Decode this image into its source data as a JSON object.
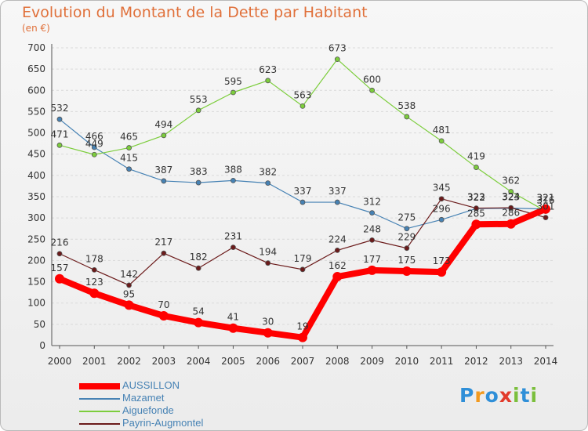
{
  "header": {
    "title": "Evolution du Montant de la Dette par Habitant",
    "unit": "(en €)"
  },
  "colors": {
    "title": "#e0703a",
    "grid": "#d9d9d9",
    "axis_text": "#333333",
    "legend_text": "#4682b4"
  },
  "logo": {
    "letters": [
      "P",
      "r",
      "o",
      "x",
      "i",
      "t",
      "i"
    ],
    "colors": [
      "#2f8fd8",
      "#f29a1f",
      "#2f8fd8",
      "#e23b2b",
      "#7bbf3c",
      "#2f8fd8",
      "#7bbf3c"
    ]
  },
  "chart_data": {
    "type": "line",
    "title": "Evolution du Montant de la Dette par Habitant",
    "ylabel": "(en €)",
    "xlabel": "",
    "ylim": [
      0,
      700
    ],
    "y_ticks": [
      0,
      50,
      100,
      150,
      200,
      250,
      300,
      350,
      400,
      450,
      500,
      550,
      600,
      650,
      700
    ],
    "grid": "horizontal dashed",
    "legend_position": "bottom-left",
    "categories": [
      "2000",
      "2001",
      "2002",
      "2003",
      "2004",
      "2005",
      "2006",
      "2007",
      "2008",
      "2009",
      "2010",
      "2011",
      "2012",
      "2013",
      "2014"
    ],
    "series": [
      {
        "name": "AUSSILLON",
        "color": "#ff0000",
        "values": [
          157,
          123,
          95,
          70,
          54,
          41,
          30,
          19,
          162,
          177,
          175,
          173,
          285,
          286,
          321
        ],
        "labels": [
          "157",
          "123",
          "95",
          "70",
          "54",
          "41",
          "30",
          "19",
          "162",
          "177",
          "175",
          "173",
          "285",
          "286",
          "321"
        ]
      },
      {
        "name": "Mazamet",
        "color": "#4682b4",
        "values": [
          532,
          466,
          415,
          387,
          383,
          388,
          382,
          337,
          337,
          312,
          275,
          296,
          322,
          323,
          321
        ],
        "labels": [
          "532",
          "466",
          "415",
          "387",
          "383",
          "388",
          "382",
          "337",
          "337",
          "312",
          "275",
          "296",
          "322",
          "323",
          "321"
        ]
      },
      {
        "name": "Aiguefonde",
        "color": "#7ccd3c",
        "values": [
          471,
          449,
          465,
          494,
          553,
          595,
          623,
          563,
          673,
          600,
          538,
          481,
          419,
          362,
          316
        ],
        "labels": [
          "471",
          "449",
          "465",
          "494",
          "553",
          "595",
          "623",
          "563",
          "673",
          "600",
          "538",
          "481",
          "419",
          "362",
          "316"
        ]
      },
      {
        "name": "Payrin-Augmontel",
        "color": "#6b1a1a",
        "values": [
          216,
          178,
          142,
          217,
          182,
          231,
          194,
          179,
          224,
          248,
          229,
          345,
          323,
          324,
          301
        ],
        "labels": [
          "216",
          "178",
          "142",
          "217",
          "182",
          "231",
          "194",
          "179",
          "224",
          "248",
          "229",
          "345",
          "323",
          "324",
          "301"
        ]
      }
    ]
  }
}
